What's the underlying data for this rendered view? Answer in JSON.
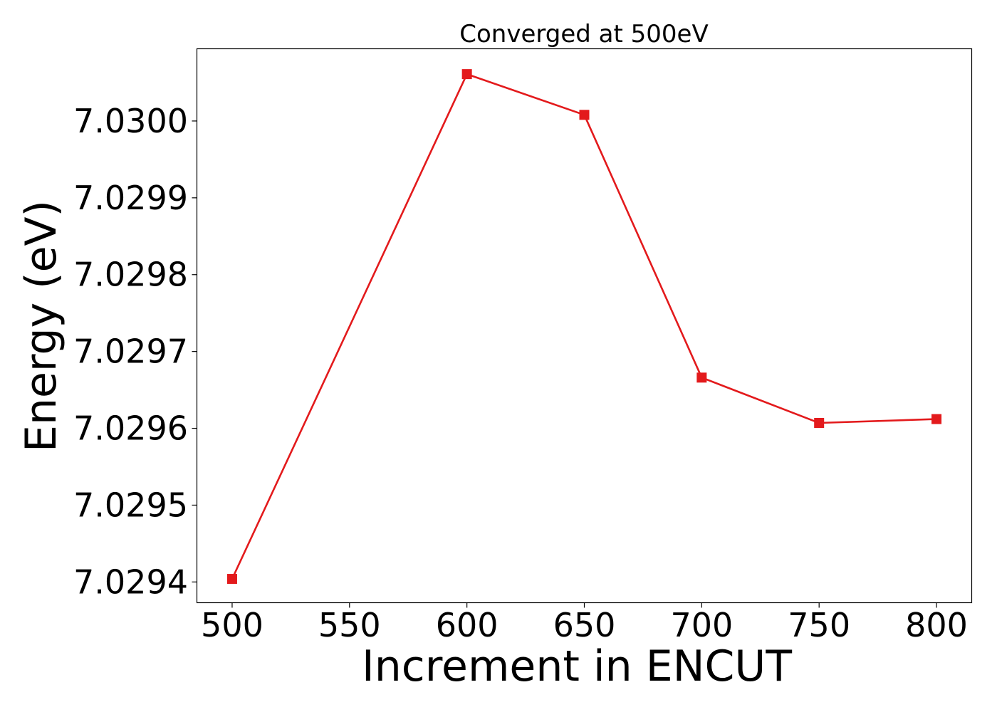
{
  "chart_data": {
    "type": "line",
    "title": "Converged at 500eV",
    "xlabel": "Increment in ENCUT",
    "ylabel": "Energy (eV)",
    "xlim": [
      485,
      815
    ],
    "ylim": [
      7.029373,
      7.030094
    ],
    "x_ticks": [
      500,
      550,
      600,
      650,
      700,
      750,
      800
    ],
    "x_tick_labels": [
      "500",
      "550",
      "600",
      "650",
      "700",
      "750",
      "800"
    ],
    "y_ticks": [
      7.0294,
      7.0295,
      7.0296,
      7.0297,
      7.0298,
      7.0299,
      7.03
    ],
    "y_tick_labels": [
      "7.0294",
      "7.0295",
      "7.0296",
      "7.0297",
      "7.0298",
      "7.0299",
      "7.0300"
    ],
    "grid": false,
    "series": [
      {
        "color": "#e31a1c",
        "marker": "square",
        "x": [
          500,
          600,
          650,
          700,
          750,
          800
        ],
        "y": [
          7.029404,
          7.030061,
          7.030008,
          7.029666,
          7.029607,
          7.029612
        ]
      }
    ]
  }
}
